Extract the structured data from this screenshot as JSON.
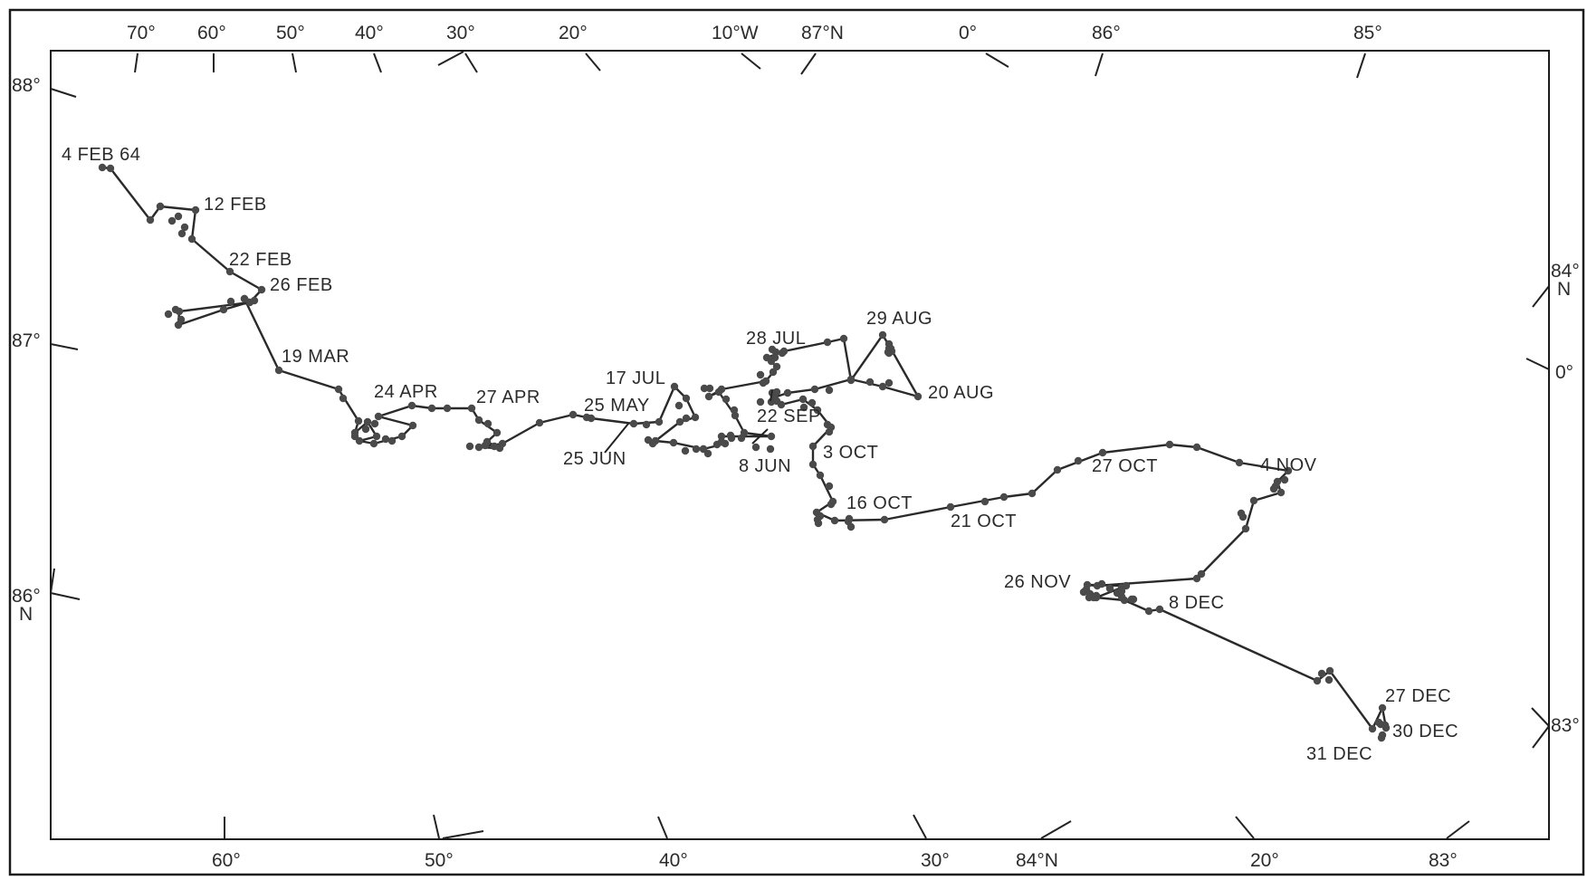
{
  "map": {
    "top_labels": [
      "70°",
      "60°",
      "50°",
      "40°",
      "30°",
      "20°",
      "10°W",
      "87°N",
      "0°",
      "86°",
      "85°"
    ],
    "bottom_labels": [
      "60°",
      "50°",
      "40°",
      "30°",
      "84°N",
      "20°",
      "83°"
    ],
    "left_labels": [
      "88°",
      "87°",
      "86°",
      "N"
    ],
    "right_labels": [
      "84°",
      "N",
      "0°",
      "83°"
    ]
  },
  "track": {
    "stops": [
      {
        "date": "4 FEB 64"
      },
      {
        "date": "12 FEB"
      },
      {
        "date": "22 FEB"
      },
      {
        "date": "26 FEB"
      },
      {
        "date": "19 MAR"
      },
      {
        "date": "24 APR"
      },
      {
        "date": "27 APR"
      },
      {
        "date": "25 MAY"
      },
      {
        "date": "8 JUN"
      },
      {
        "date": "25 JUN"
      },
      {
        "date": "17 JUL"
      },
      {
        "date": "28 JUL"
      },
      {
        "date": "29 AUG"
      },
      {
        "date": "20 AUG"
      },
      {
        "date": "22 SEP"
      },
      {
        "date": "3 OCT"
      },
      {
        "date": "16 OCT"
      },
      {
        "date": "21 OCT"
      },
      {
        "date": "27 OCT"
      },
      {
        "date": "4 NOV"
      },
      {
        "date": "26 NOV"
      },
      {
        "date": "8 DEC"
      },
      {
        "date": "27 DEC"
      },
      {
        "date": "30 DEC"
      },
      {
        "date": "31 DEC"
      }
    ]
  }
}
